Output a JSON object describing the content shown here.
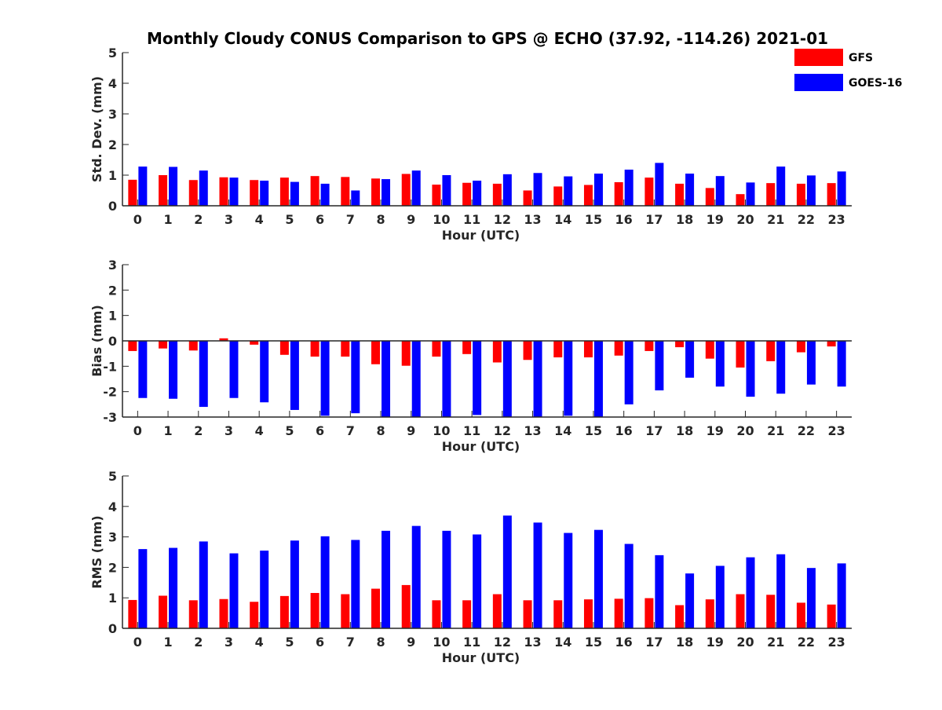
{
  "figure": {
    "title": "Monthly Cloudy CONUS Comparison to GPS @ ECHO (37.92, -114.26) 2021-01"
  },
  "legend": {
    "placement": "top-right",
    "entries": [
      {
        "label": "GFS",
        "color": "#ff0000"
      },
      {
        "label": "GOES-16",
        "color": "#0000ff"
      }
    ]
  },
  "chart_data": [
    {
      "type": "bar",
      "xlabel": "Hour (UTC)",
      "ylabel": "Std. Dev. (mm)",
      "ylim": [
        0,
        5
      ],
      "yticks": [
        0,
        1,
        2,
        3,
        4,
        5
      ],
      "categories": [
        "0",
        "1",
        "2",
        "3",
        "4",
        "5",
        "6",
        "7",
        "8",
        "9",
        "10",
        "11",
        "12",
        "13",
        "14",
        "15",
        "16",
        "17",
        "18",
        "19",
        "20",
        "21",
        "22",
        "23"
      ],
      "series": [
        {
          "name": "GFS",
          "color": "#ff0000",
          "values": [
            0.85,
            1.0,
            0.84,
            0.93,
            0.84,
            0.92,
            0.97,
            0.94,
            0.89,
            1.04,
            0.69,
            0.75,
            0.72,
            0.5,
            0.63,
            0.68,
            0.77,
            0.92,
            0.72,
            0.58,
            0.38,
            0.74,
            0.72,
            0.74
          ]
        },
        {
          "name": "GOES-16",
          "color": "#0000ff",
          "values": [
            1.28,
            1.27,
            1.15,
            0.92,
            0.82,
            0.78,
            0.72,
            0.5,
            0.87,
            1.15,
            1.0,
            0.82,
            1.03,
            1.07,
            0.96,
            1.05,
            1.18,
            1.4,
            1.05,
            0.97,
            0.76,
            1.28,
            0.99,
            1.12
          ]
        }
      ]
    },
    {
      "type": "bar",
      "xlabel": "Hour (UTC)",
      "ylabel": "Bias (mm)",
      "ylim": [
        -3,
        3
      ],
      "yticks": [
        -3,
        -2,
        -1,
        0,
        1,
        2,
        3
      ],
      "categories": [
        "0",
        "1",
        "2",
        "3",
        "4",
        "5",
        "6",
        "7",
        "8",
        "9",
        "10",
        "11",
        "12",
        "13",
        "14",
        "15",
        "16",
        "17",
        "18",
        "19",
        "20",
        "21",
        "22",
        "23"
      ],
      "series": [
        {
          "name": "GFS",
          "color": "#ff0000",
          "values": [
            -0.4,
            -0.3,
            -0.38,
            0.1,
            -0.15,
            -0.55,
            -0.62,
            -0.62,
            -0.92,
            -0.98,
            -0.62,
            -0.52,
            -0.85,
            -0.75,
            -0.65,
            -0.65,
            -0.58,
            -0.4,
            -0.25,
            -0.7,
            -1.05,
            -0.8,
            -0.45,
            -0.22
          ]
        },
        {
          "name": "GOES-16",
          "color": "#0000ff",
          "values": [
            -2.25,
            -2.28,
            -2.6,
            -2.25,
            -2.42,
            -2.72,
            -2.95,
            -2.85,
            -3.0,
            -3.0,
            -3.0,
            -2.92,
            -3.0,
            -3.0,
            -2.95,
            -3.0,
            -2.5,
            -1.95,
            -1.45,
            -1.8,
            -2.2,
            -2.08,
            -1.72,
            -1.8
          ]
        }
      ]
    },
    {
      "type": "bar",
      "xlabel": "Hour (UTC)",
      "ylabel": "RMS (mm)",
      "ylim": [
        0,
        5
      ],
      "yticks": [
        0,
        1,
        2,
        3,
        4,
        5
      ],
      "categories": [
        "0",
        "1",
        "2",
        "3",
        "4",
        "5",
        "6",
        "7",
        "8",
        "9",
        "10",
        "11",
        "12",
        "13",
        "14",
        "15",
        "16",
        "17",
        "18",
        "19",
        "20",
        "21",
        "22",
        "23"
      ],
      "series": [
        {
          "name": "GFS",
          "color": "#ff0000",
          "values": [
            0.93,
            1.07,
            0.92,
            0.96,
            0.87,
            1.06,
            1.16,
            1.12,
            1.3,
            1.42,
            0.92,
            0.92,
            1.12,
            0.92,
            0.92,
            0.95,
            0.97,
            0.99,
            0.76,
            0.95,
            1.12,
            1.1,
            0.84,
            0.78
          ]
        },
        {
          "name": "GOES-16",
          "color": "#0000ff",
          "values": [
            2.6,
            2.64,
            2.85,
            2.46,
            2.55,
            2.88,
            3.02,
            2.9,
            3.2,
            3.36,
            3.2,
            3.08,
            3.7,
            3.47,
            3.13,
            3.23,
            2.77,
            2.4,
            1.8,
            2.05,
            2.33,
            2.43,
            1.98,
            2.13
          ]
        }
      ]
    }
  ]
}
